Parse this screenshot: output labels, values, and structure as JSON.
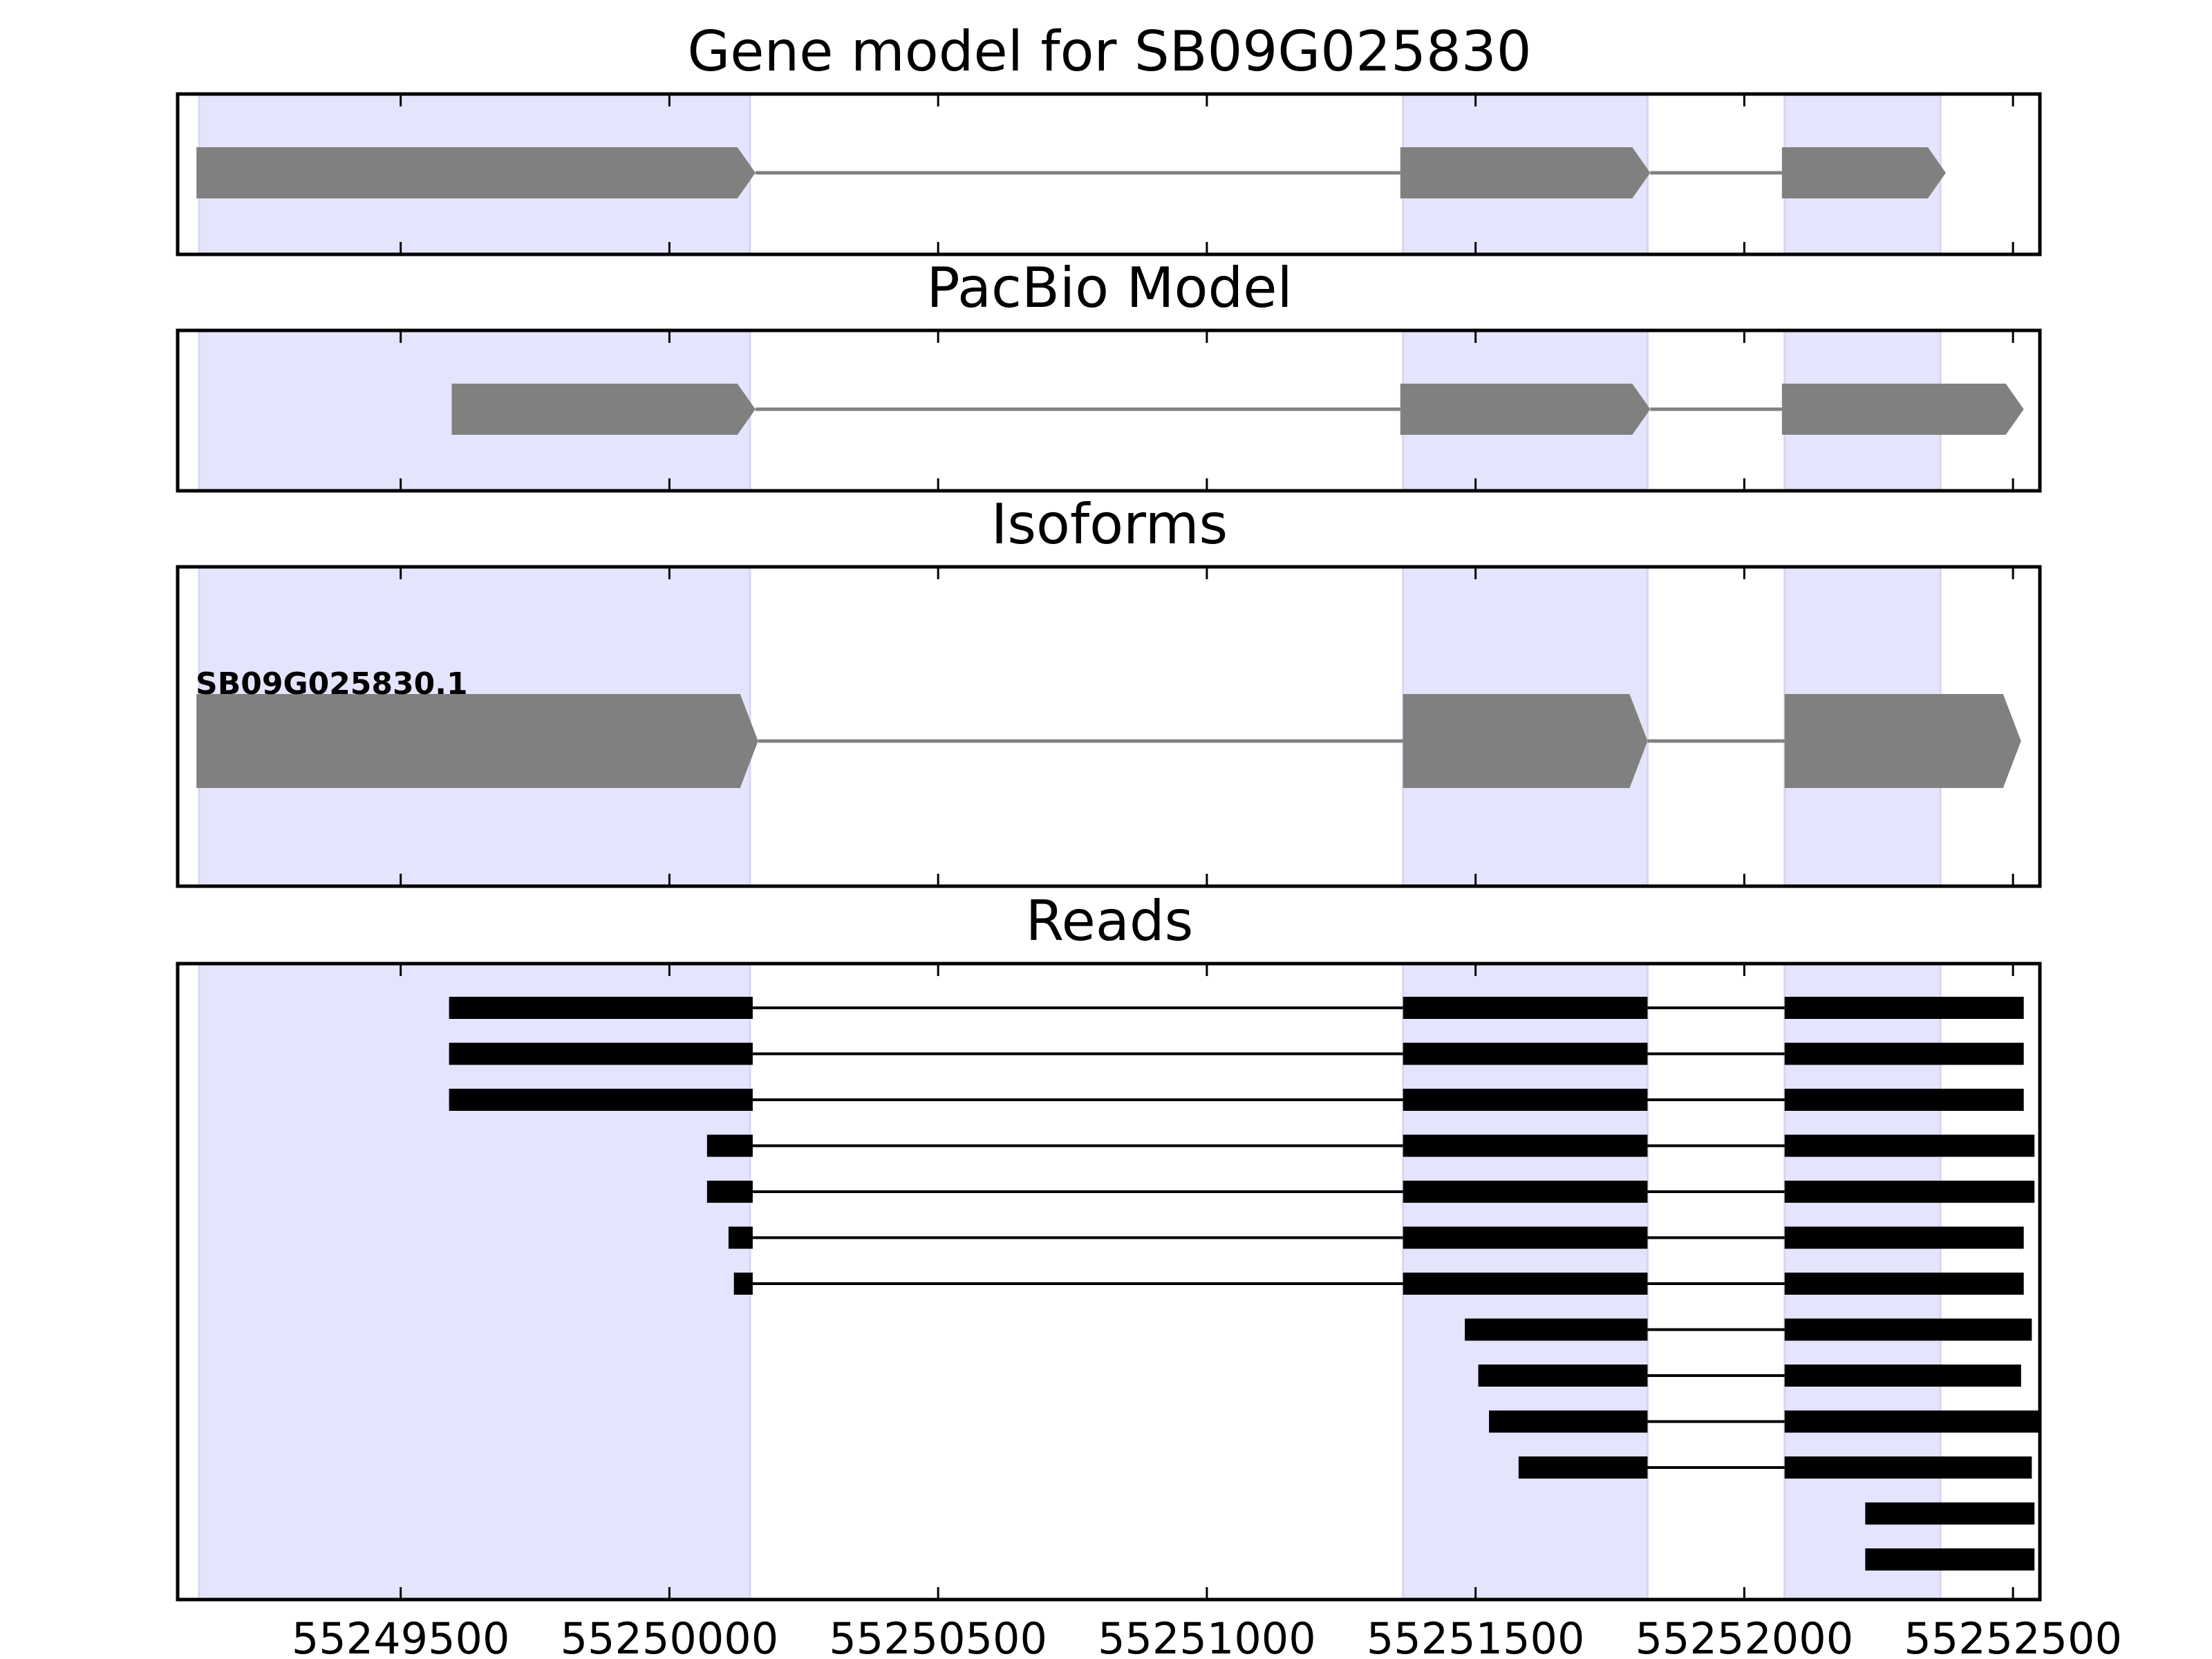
{
  "chart_data": {
    "type": "gene-structure",
    "x_axis": {
      "range": [
        55249085,
        55252550
      ],
      "ticks": [
        55249500,
        55250000,
        55250500,
        55251000,
        55251500,
        55252000,
        55252500
      ],
      "tick_labels": [
        "55249500",
        "55250000",
        "55250500",
        "55251000",
        "55251500",
        "55252000",
        "55252500"
      ]
    },
    "colors": {
      "exon_region": "#e4e4fd",
      "model_feature": "#808080",
      "read_feature": "#000000",
      "frame": "#000000"
    },
    "exon_regions": [
      [
        55249125,
        55250150
      ],
      [
        55251365,
        55251820
      ],
      [
        55252075,
        55252365
      ]
    ],
    "panels": [
      {
        "id": "gene-model",
        "title": "Gene model for SB09G025830",
        "features": [
          {
            "exons": [
              [
                55249120,
                55250160
              ],
              [
                55251360,
                55251825
              ],
              [
                55252070,
                55252375
              ]
            ]
          }
        ]
      },
      {
        "id": "pacbio-model",
        "title": "PacBio Model",
        "features": [
          {
            "exons": [
              [
                55249595,
                55250160
              ],
              [
                55251360,
                55251825
              ],
              [
                55252070,
                55252520
              ]
            ]
          }
        ]
      },
      {
        "id": "isoforms",
        "title": "Isoforms",
        "features": [
          {
            "label": "SB09G025830.1",
            "exons": [
              [
                55249120,
                55250165
              ],
              [
                55251365,
                55251820
              ],
              [
                55252075,
                55252515
              ]
            ]
          }
        ]
      },
      {
        "id": "reads",
        "title": "Reads",
        "reads": [
          [
            [
              55249590,
              55250155
            ],
            [
              55251365,
              55251820
            ],
            [
              55252075,
              55252520
            ]
          ],
          [
            [
              55249590,
              55250155
            ],
            [
              55251365,
              55251820
            ],
            [
              55252075,
              55252520
            ]
          ],
          [
            [
              55249590,
              55250155
            ],
            [
              55251365,
              55251820
            ],
            [
              55252075,
              55252520
            ]
          ],
          [
            [
              55250070,
              55250155
            ],
            [
              55251365,
              55251820
            ],
            [
              55252075,
              55252540
            ]
          ],
          [
            [
              55250070,
              55250155
            ],
            [
              55251365,
              55251820
            ],
            [
              55252075,
              55252540
            ]
          ],
          [
            [
              55250110,
              55250155
            ],
            [
              55251365,
              55251820
            ],
            [
              55252075,
              55252520
            ]
          ],
          [
            [
              55250120,
              55250155
            ],
            [
              55251365,
              55251820
            ],
            [
              55252075,
              55252520
            ]
          ],
          [
            [
              55251480,
              55251820
            ],
            [
              55252075,
              55252535
            ]
          ],
          [
            [
              55251505,
              55251820
            ],
            [
              55252075,
              55252515
            ]
          ],
          [
            [
              55251525,
              55251820
            ],
            [
              55252075,
              55252550
            ]
          ],
          [
            [
              55251580,
              55251820
            ],
            [
              55252075,
              55252535
            ]
          ],
          [
            [
              55252225,
              55252540
            ]
          ],
          [
            [
              55252225,
              55252540
            ]
          ]
        ]
      }
    ]
  }
}
